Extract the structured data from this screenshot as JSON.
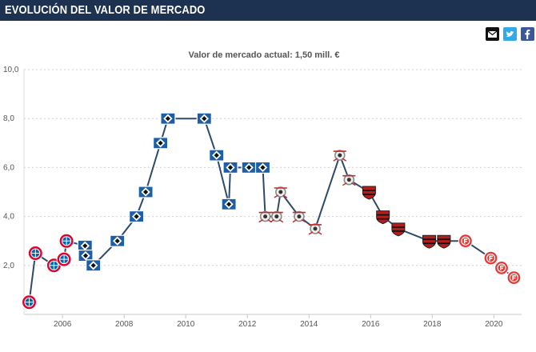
{
  "header": {
    "title": "EVOLUCIÓN DEL VALOR DE MERCADO"
  },
  "share_icons": [
    "email-icon",
    "twitter-icon",
    "facebook-icon"
  ],
  "colors": {
    "header_bg": "#1d3150",
    "line": "#2e4a6b",
    "hsv": "#1c5fa8",
    "bayern": "#dc052d",
    "corinthians": "#8c8c8c",
    "flamengo": "#b71c1c",
    "internacional": "#e53935"
  },
  "chart_data": {
    "type": "line",
    "title": "Valor de mercado actual: 1,50 mill. €",
    "xlabel": "",
    "ylabel": "",
    "xlim": [
      2004.75,
      2020.9
    ],
    "ylim": [
      0,
      10
    ],
    "yticks": [
      "2,0",
      "4,0",
      "6,0",
      "8,0",
      "10,0"
    ],
    "ytick_values": [
      2,
      4,
      6,
      8,
      10
    ],
    "xticks": [
      "2006",
      "2008",
      "2010",
      "2012",
      "2014",
      "2016",
      "2018",
      "2020"
    ],
    "xtick_values": [
      2006,
      2008,
      2010,
      2012,
      2014,
      2016,
      2018,
      2020
    ],
    "grid": "horizontal-dashed",
    "series": [
      {
        "points": [
          {
            "x": 2004.92,
            "y": 0.5,
            "club": "bayern"
          },
          {
            "x": 2005.12,
            "y": 2.5,
            "club": "bayern"
          },
          {
            "x": 2005.72,
            "y": 2.0,
            "club": "bayern"
          },
          {
            "x": 2006.05,
            "y": 2.25,
            "club": "bayern"
          },
          {
            "x": 2006.13,
            "y": 3.0,
            "club": "bayern"
          },
          {
            "x": 2006.73,
            "y": 2.8,
            "club": "hsv"
          },
          {
            "x": 2006.75,
            "y": 2.4,
            "club": "hsv"
          },
          {
            "x": 2007.0,
            "y": 2.0,
            "club": "hsv"
          },
          {
            "x": 2007.78,
            "y": 3.0,
            "club": "hsv"
          },
          {
            "x": 2008.4,
            "y": 4.0,
            "club": "hsv"
          },
          {
            "x": 2008.7,
            "y": 5.0,
            "club": "hsv"
          },
          {
            "x": 2009.18,
            "y": 7.0,
            "club": "hsv"
          },
          {
            "x": 2009.42,
            "y": 8.0,
            "club": "hsv"
          },
          {
            "x": 2010.6,
            "y": 8.0,
            "club": "hsv"
          },
          {
            "x": 2011.0,
            "y": 6.5,
            "club": "hsv"
          },
          {
            "x": 2011.4,
            "y": 4.5,
            "club": "hsv"
          },
          {
            "x": 2011.45,
            "y": 6.0,
            "club": "hsv"
          },
          {
            "x": 2012.05,
            "y": 6.0,
            "club": "hsv"
          },
          {
            "x": 2012.5,
            "y": 6.0,
            "club": "hsv"
          },
          {
            "x": 2012.58,
            "y": 4.0,
            "club": "corinthians"
          },
          {
            "x": 2012.95,
            "y": 4.0,
            "club": "corinthians"
          },
          {
            "x": 2013.08,
            "y": 5.0,
            "club": "corinthians"
          },
          {
            "x": 2013.68,
            "y": 4.0,
            "club": "corinthians"
          },
          {
            "x": 2014.2,
            "y": 3.5,
            "club": "corinthians"
          },
          {
            "x": 2015.0,
            "y": 6.5,
            "club": "corinthians"
          },
          {
            "x": 2015.3,
            "y": 5.5,
            "club": "corinthians"
          },
          {
            "x": 2015.95,
            "y": 5.0,
            "club": "flamengo"
          },
          {
            "x": 2016.4,
            "y": 4.0,
            "club": "flamengo"
          },
          {
            "x": 2016.9,
            "y": 3.5,
            "club": "flamengo"
          },
          {
            "x": 2017.9,
            "y": 3.0,
            "club": "flamengo"
          },
          {
            "x": 2018.38,
            "y": 3.0,
            "club": "flamengo"
          },
          {
            "x": 2019.08,
            "y": 3.0,
            "club": "internacional"
          },
          {
            "x": 2019.9,
            "y": 2.3,
            "club": "internacional"
          },
          {
            "x": 2020.25,
            "y": 1.9,
            "club": "internacional"
          },
          {
            "x": 2020.65,
            "y": 1.5,
            "club": "internacional"
          }
        ]
      }
    ]
  }
}
